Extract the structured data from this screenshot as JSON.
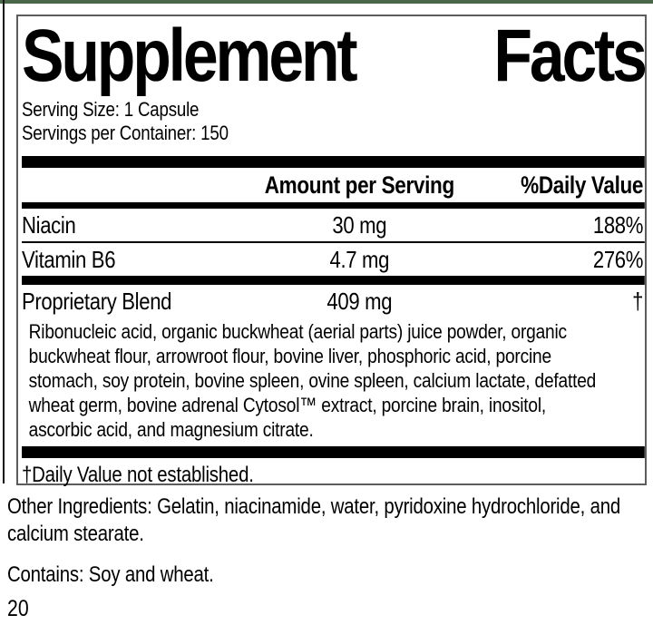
{
  "theme": {
    "green_bar": "#4a6749",
    "box_border": "#5c5c5c",
    "bar_color": "#000000",
    "text_color": "#000000"
  },
  "label": {
    "title_left": "Supplement",
    "title_right": "Facts",
    "serving_size": "Serving Size: 1 Capsule",
    "servings_per_container": "Servings per Container: 150",
    "header": {
      "amount": "Amount per Serving",
      "daily_value": "%Daily Value"
    },
    "rows": [
      {
        "name": "Niacin",
        "amount": "30 mg",
        "dv": "188%"
      },
      {
        "name": "Vitamin B6",
        "amount": "4.7 mg",
        "dv": "276%"
      },
      {
        "name": "Proprietary Blend",
        "amount": "409 mg",
        "dv": "†"
      }
    ],
    "blend_description": "Ribonucleic acid, organic buckwheat (aerial parts) juice powder, organic buckwheat flour, arrowroot flour, bovine liver, phosphoric acid, porcine stomach, soy protein, bovine spleen, ovine spleen, calcium lactate, defatted wheat germ, bovine adrenal Cytosol™ extract, porcine brain, inositol, ascorbic acid, and magnesium citrate.",
    "footnote": "†Daily Value not established."
  },
  "below": {
    "other_ingredients": "Other Ingredients: Gelatin, niacinamide, water, pyridoxine hydrochloride, and calcium stearate.",
    "contains": "Contains: Soy and wheat.",
    "page_number": "20"
  }
}
